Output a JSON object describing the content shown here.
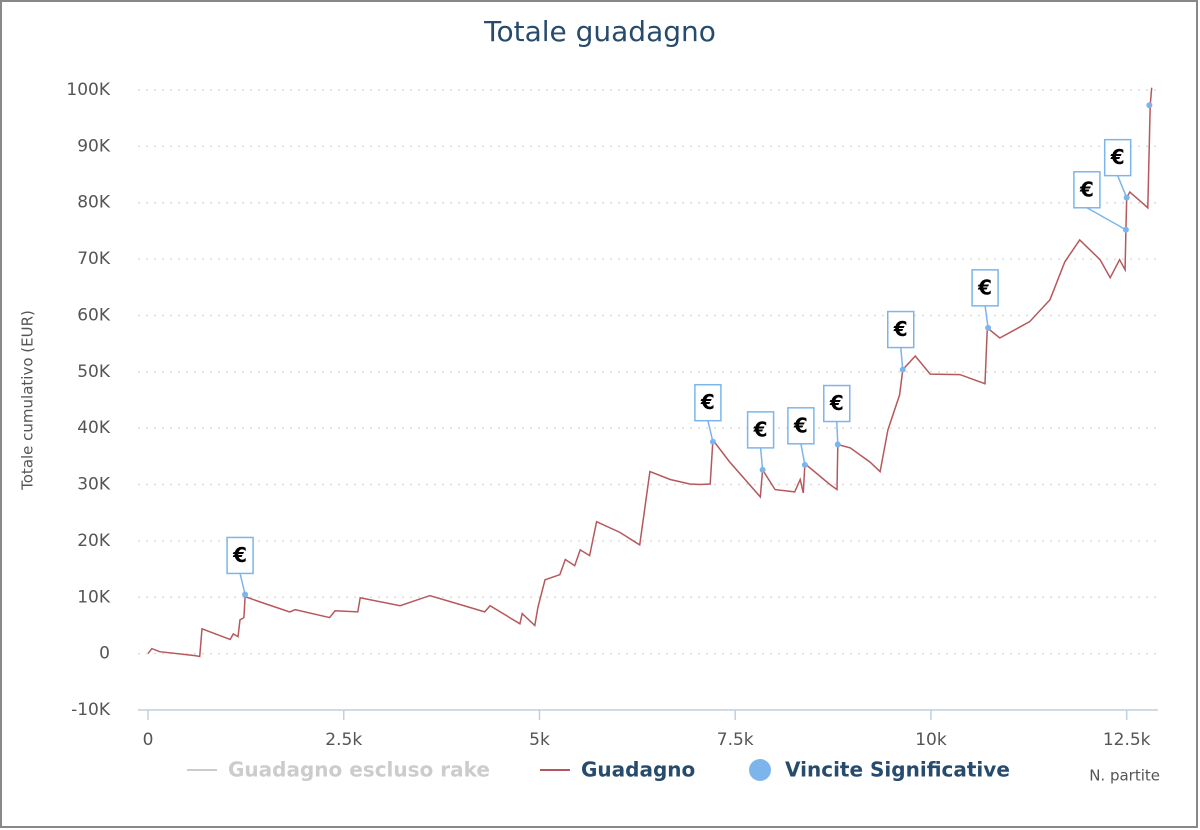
{
  "chart_data": {
    "type": "line",
    "title": "Totale guadagno",
    "x_label": "N. partite",
    "y_label": "Totale cumulativo (EUR)",
    "flag_label": "€",
    "xlim": [
      0,
      12900
    ],
    "ylim": [
      -10000,
      100000
    ],
    "xticks": [
      0,
      {
        "value": 2500,
        "label": "2.5k"
      },
      {
        "value": 5000,
        "label": "5k"
      },
      {
        "value": 7500,
        "label": "7.5k"
      },
      {
        "value": 10000,
        "label": "10k"
      },
      {
        "value": 12500,
        "label": "12.5k"
      }
    ],
    "yticks": [
      {
        "value": -10000,
        "label": "-10K"
      },
      0,
      {
        "value": 10000,
        "label": "10K"
      },
      {
        "value": 20000,
        "label": "20K"
      },
      {
        "value": 30000,
        "label": "30K"
      },
      {
        "value": 40000,
        "label": "40K"
      },
      {
        "value": 50000,
        "label": "50K"
      },
      {
        "value": 60000,
        "label": "60K"
      },
      {
        "value": 70000,
        "label": "70K"
      },
      {
        "value": 80000,
        "label": "80K"
      },
      {
        "value": 90000,
        "label": "90K"
      },
      {
        "value": 100000,
        "label": "100K"
      }
    ],
    "grid": true,
    "series": [
      {
        "name": "Guadagno escluso rake",
        "color": "#cccccc",
        "visible": false
      },
      {
        "name": "Guadagno",
        "color": "#b5585c",
        "x": [
          0,
          50,
          150,
          600,
          660,
          690,
          1050,
          1090,
          1150,
          1175,
          1225,
          1240,
          1490,
          1810,
          1880,
          2320,
          2390,
          2680,
          2710,
          3220,
          3600,
          3990,
          4300,
          4370,
          4750,
          4780,
          4940,
          4980,
          5070,
          5260,
          5330,
          5450,
          5520,
          5640,
          5730,
          6030,
          6280,
          6410,
          6670,
          6920,
          7050,
          7180,
          7215,
          7430,
          7820,
          7850,
          8010,
          8260,
          8330,
          8370,
          8390,
          8710,
          8800,
          8810,
          8970,
          9220,
          9350,
          9450,
          9600,
          9640,
          9800,
          9990,
          10370,
          10690,
          10720,
          10880,
          11260,
          11520,
          11710,
          11900,
          12160,
          12290,
          12410,
          12480,
          12490,
          12500,
          12540,
          12730,
          12770,
          12800,
          12820
        ],
        "values": [
          0,
          900,
          350,
          -350,
          -500,
          4400,
          2500,
          3500,
          3000,
          6000,
          6400,
          10100,
          8900,
          7400,
          7800,
          6400,
          7600,
          7400,
          9900,
          8500,
          10300,
          8700,
          7400,
          8500,
          5300,
          7100,
          5000,
          8200,
          13100,
          14000,
          16700,
          15600,
          18400,
          17400,
          23400,
          21500,
          19300,
          32300,
          30900,
          30100,
          30000,
          30100,
          37900,
          34000,
          27800,
          32600,
          29100,
          28700,
          30900,
          28500,
          33700,
          30000,
          29100,
          37100,
          36500,
          34000,
          32300,
          39700,
          45900,
          50400,
          52800,
          49600,
          49500,
          47900,
          57800,
          56000,
          58900,
          62800,
          69500,
          73400,
          69900,
          66700,
          69900,
          68100,
          75200,
          80900,
          81900,
          79600,
          79100,
          97300,
          100400
        ]
      },
      {
        "name": "Vincite Significative",
        "type": "scatter",
        "color": "#7cb5ec",
        "x": [
          1240,
          7215,
          7850,
          8390,
          8810,
          9640,
          10730,
          12490,
          12500,
          12790
        ],
        "values": [
          10500,
          37600,
          32600,
          33500,
          37100,
          50400,
          57800,
          75200,
          80900,
          97300
        ]
      }
    ]
  }
}
